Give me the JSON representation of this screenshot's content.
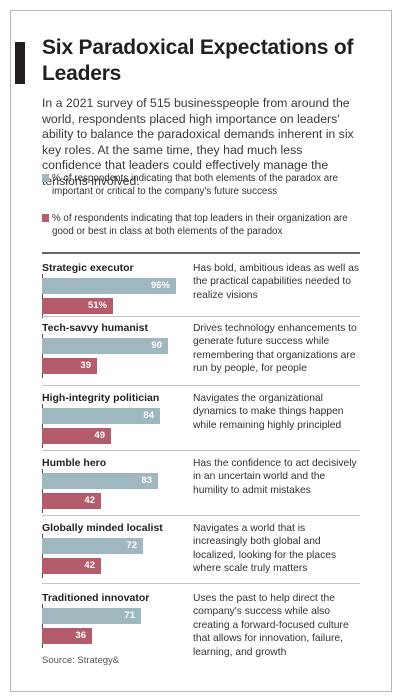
{
  "title": "Six Paradoxical Expectations of Leaders",
  "intro": "In a 2021 survey of 515 businesspeople from around the world, respondents placed high importance on leaders' ability to balance the paradoxical demands inherent in six key roles. At the same time, they had much less confidence that leaders could effectively manage the tensions involved.",
  "colors": {
    "series1": "#9fb7bf",
    "series2": "#b45b6c"
  },
  "source": "Source: Strategy&",
  "chart_data": {
    "type": "bar",
    "orientation": "horizontal",
    "categories": [
      "Strategic executor",
      "Tech-savvy humanist",
      "High-integrity politician",
      "Humble hero",
      "Globally minded localist",
      "Traditioned innovator"
    ],
    "descriptions": [
      "Has bold, ambitious ideas as well as the practical capabilities needed to realize visions",
      "Drives technology enhancements to generate future success while remembering that organizations are run by people, for people",
      "Navigates the organizational dynamics to make things happen while remaining highly principled",
      "Has the confidence to act decisively in an uncertain world and the humility to admit mistakes",
      "Navigates a world that is increasingly both global and localized, looking for the places where scale truly matters",
      "Uses the past to help direct the company's success while also creating a forward-focused culture that allows for innovation, failure, learning, and growth"
    ],
    "series": [
      {
        "name": "% of respondents indicating that both elements of the paradox are important or critical to the company's future success",
        "values": [
          96,
          90,
          84,
          83,
          72,
          71
        ],
        "labels": [
          "96%",
          "90",
          "84",
          "83",
          "72",
          "71"
        ]
      },
      {
        "name": "% of respondents indicating that top leaders in their organization are good or best in class at both elements of the paradox",
        "values": [
          51,
          39,
          49,
          42,
          42,
          36
        ],
        "labels": [
          "51%",
          "39",
          "49",
          "42",
          "42",
          "36"
        ]
      }
    ],
    "xlim": [
      0,
      100
    ]
  }
}
